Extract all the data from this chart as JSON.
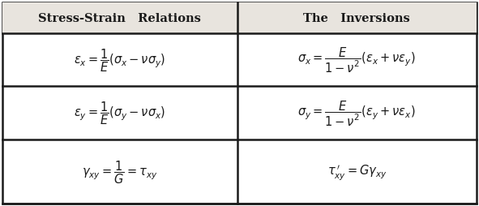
{
  "figsize": [
    5.91,
    2.55
  ],
  "dpi": 100,
  "col1_header": "Stress-Strain   Relations",
  "col2_header": "The   Inversions",
  "row1_col1": "$\\varepsilon_x = \\dfrac{1}{E}\\left(\\sigma_x - \\nu\\sigma_y\\right)$",
  "row1_col2": "$\\sigma_x = \\dfrac{E}{1-\\nu^2}\\left(\\varepsilon_x + \\nu\\varepsilon_y\\right)$",
  "row2_col1": "$\\varepsilon_y = \\dfrac{1}{E}\\left(\\sigma_y - \\nu\\sigma_x\\right)$",
  "row2_col2": "$\\sigma_y = \\dfrac{E}{1-\\nu^2}\\left(\\varepsilon_y + \\nu\\varepsilon_x\\right)$",
  "row3_col1": "$\\gamma_{xy} = \\dfrac{1}{G} = \\tau_{xy}$",
  "row3_col2": "$\\tau_{xy}^{\\,\\prime} = G\\gamma_{xy}$",
  "bg_color": "#ffffff",
  "header_bg": "#e8e4de",
  "border_color": "#1a1a1a",
  "text_color": "#1a1a1a",
  "header_fontsize": 10.5,
  "formula_fontsize": 10.5,
  "col_split": 0.495,
  "rows": [
    1.0,
    0.845,
    0.585,
    0.32,
    0.0
  ]
}
